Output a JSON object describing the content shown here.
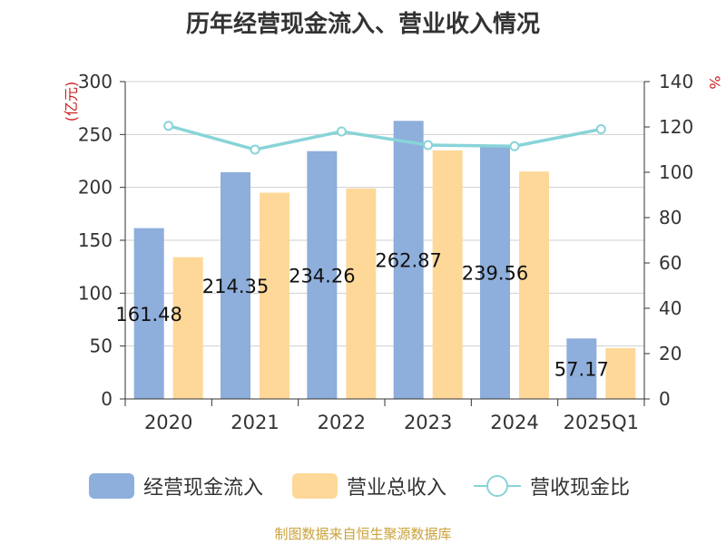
{
  "chart_data": {
    "type": "bar",
    "title": "历年经营现金流入、营业收入情况",
    "categories": [
      "2020",
      "2021",
      "2022",
      "2023",
      "2024",
      "2025Q1"
    ],
    "series": [
      {
        "name": "经营现金流入",
        "type": "bar",
        "axis": "left",
        "color": "#8eaedb",
        "values": [
          161.48,
          214.35,
          234.26,
          262.87,
          239.56,
          57.17
        ]
      },
      {
        "name": "营业总收入",
        "type": "bar",
        "axis": "left",
        "color": "#fed899",
        "values": [
          134,
          195,
          199,
          235,
          215,
          48
        ]
      },
      {
        "name": "营收现金比",
        "type": "line",
        "axis": "right",
        "color": "#88d4d8",
        "values": [
          120.5,
          110,
          118,
          112,
          111.5,
          119
        ]
      }
    ],
    "data_labels": [
      "161.48",
      "214.35",
      "234.26",
      "262.87",
      "239.56",
      "57.17"
    ],
    "ylabel_left": "(亿元)",
    "ylabel_right": "%",
    "ylim_left": [
      0,
      300
    ],
    "ylim_right": [
      0,
      140
    ],
    "yticks_left": [
      "0",
      "50",
      "100",
      "150",
      "200",
      "250",
      "300"
    ],
    "yticks_right": [
      "0",
      "20",
      "40",
      "60",
      "80",
      "100",
      "120",
      "140"
    ],
    "grid": true,
    "legend": "bottom"
  },
  "source": "制图数据来自恒生聚源数据库"
}
